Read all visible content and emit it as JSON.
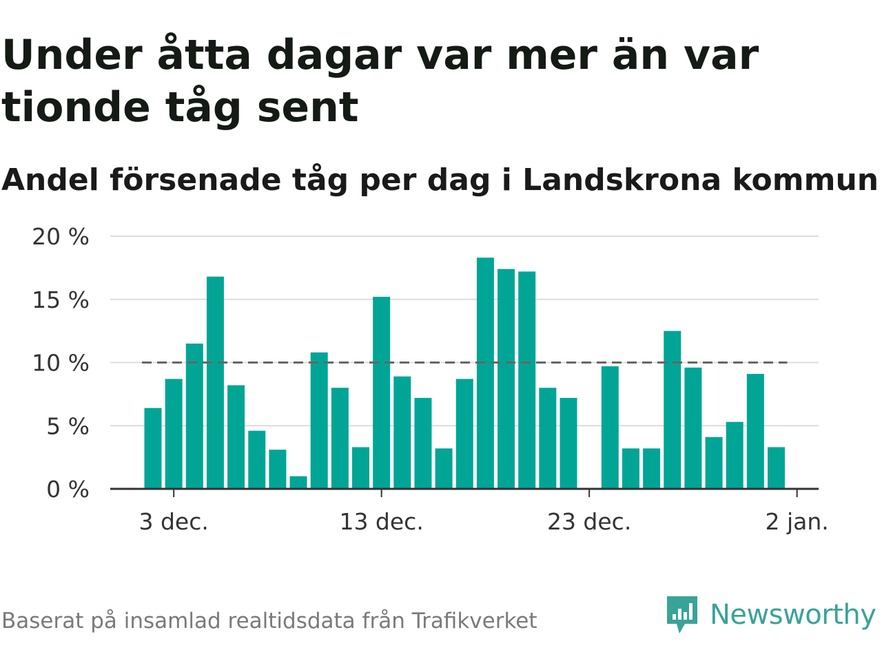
{
  "title": "Under åtta dagar var mer än var tionde tåg sent",
  "subtitle": "Andel försenade tåg per dag i Landskrona kommun",
  "source": "Baserat på insamlad realtidsdata från Trafikverket",
  "brand": {
    "name": "Newsworthy",
    "color": "#3aa397"
  },
  "chart_data": {
    "type": "bar",
    "x": [
      "2 dec.",
      "3 dec.",
      "4 dec.",
      "5 dec.",
      "6 dec.",
      "7 dec.",
      "8 dec.",
      "9 dec.",
      "10 dec.",
      "11 dec.",
      "12 dec.",
      "13 dec.",
      "14 dec.",
      "15 dec.",
      "16 dec.",
      "17 dec.",
      "18 dec.",
      "19 dec.",
      "20 dec.",
      "21 dec.",
      "22 dec.",
      "23 dec.",
      "24 dec.",
      "25 dec.",
      "26 dec.",
      "27 dec.",
      "28 dec.",
      "29 dec.",
      "30 dec.",
      "31 dec.",
      "1 jan."
    ],
    "values": [
      6.4,
      8.7,
      11.5,
      16.8,
      8.2,
      4.6,
      3.1,
      1.0,
      10.8,
      8.0,
      3.3,
      15.2,
      8.9,
      7.2,
      3.2,
      8.7,
      18.3,
      17.4,
      17.2,
      8.0,
      7.2,
      null,
      9.7,
      3.2,
      3.2,
      12.5,
      9.6,
      4.1,
      5.3,
      9.1,
      3.3
    ],
    "threshold": 10,
    "ylim": [
      0,
      20
    ],
    "yticks": [
      0,
      5,
      10,
      15,
      20
    ],
    "ytick_labels": [
      "0 %",
      "5 %",
      "10 %",
      "15 %",
      "20 %"
    ],
    "xticks": [
      {
        "index": 1,
        "label": "3 dec."
      },
      {
        "index": 11,
        "label": "13 dec."
      },
      {
        "index": 21,
        "label": "23 dec."
      },
      {
        "index": 31,
        "label": "2 jan."
      }
    ],
    "bar_color": "#00a596",
    "grid": true
  }
}
